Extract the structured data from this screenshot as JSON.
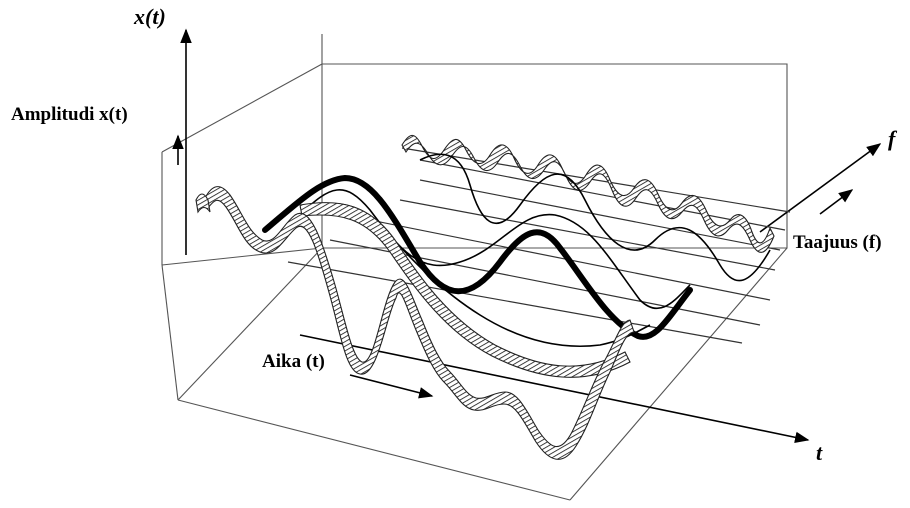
{
  "labels": {
    "x_axis_top": "x(t)",
    "amplitude_label": "Amplitudi x(t)",
    "frequency_axis": "f",
    "frequency_label": "Taajuus (f)",
    "time_axis": "t",
    "time_label": "Aika (t)"
  }
}
